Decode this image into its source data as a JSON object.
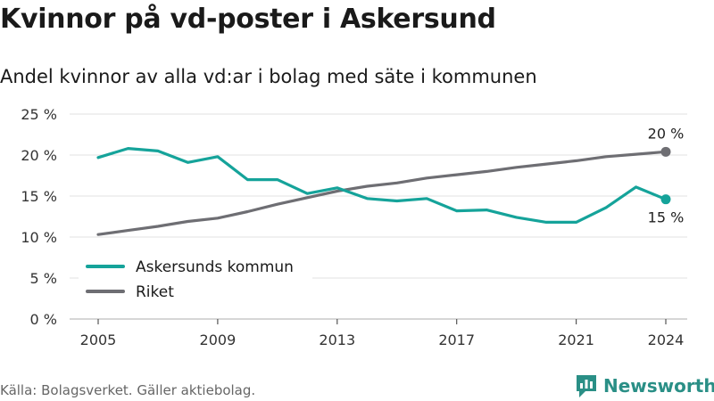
{
  "title": "Kvinnor på vd-poster i Askersund",
  "subtitle": "Andel kvinnor av alla vd:ar i bolag med säte i kommunen",
  "source": "Källa: Bolagsverket. Gäller aktiebolag.",
  "brand": {
    "name": "Newsworthy",
    "logo_icon": "newsworthy-logo-icon",
    "color": "#2a8f86"
  },
  "chart_data": {
    "type": "line",
    "title": "Kvinnor på vd-poster i Askersund",
    "subtitle": "Andel kvinnor av alla vd:ar i bolag med säte i kommunen",
    "x": [
      2005,
      2006,
      2007,
      2008,
      2009,
      2010,
      2011,
      2012,
      2013,
      2014,
      2015,
      2016,
      2017,
      2018,
      2019,
      2020,
      2021,
      2022,
      2023,
      2024
    ],
    "x_ticks": [
      "2005",
      "2009",
      "2013",
      "2017",
      "2021",
      "2024"
    ],
    "y_ticks": [
      "0 %",
      "5 %",
      "10 %",
      "15 %",
      "20 %",
      "25 %"
    ],
    "ylim": [
      0,
      25
    ],
    "grid": true,
    "legend_position": "bottom-left",
    "series": [
      {
        "name": "Askersunds kommun",
        "color": "#15a39a",
        "values": [
          19.7,
          20.8,
          20.5,
          19.1,
          19.8,
          17.0,
          17.0,
          15.3,
          16.0,
          14.7,
          14.4,
          14.7,
          13.2,
          13.3,
          12.4,
          11.8,
          11.8,
          13.6,
          16.1,
          14.6
        ],
        "end_label": "15 %"
      },
      {
        "name": "Riket",
        "color": "#6e6e73",
        "values": [
          10.3,
          10.8,
          11.3,
          11.9,
          12.3,
          13.1,
          14.0,
          14.8,
          15.6,
          16.2,
          16.6,
          17.2,
          17.6,
          18.0,
          18.5,
          18.9,
          19.3,
          19.8,
          20.1,
          20.4
        ],
        "end_label": "20 %"
      }
    ]
  }
}
